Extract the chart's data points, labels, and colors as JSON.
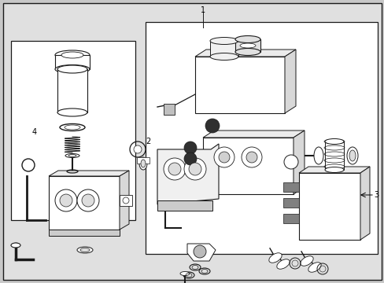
{
  "fig_bg": "#c8c8c8",
  "box_bg": "#e0e0e0",
  "white": "#ffffff",
  "lc": "#1a1a1a",
  "label_1": "1",
  "label_2": "2",
  "label_3": "3",
  "label_4": "4"
}
